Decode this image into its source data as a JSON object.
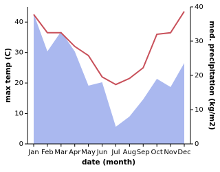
{
  "chart_data": {
    "type": "line",
    "categories": [
      "Jan",
      "Feb",
      "Mar",
      "Apr",
      "May",
      "Jun",
      "Jul",
      "Aug",
      "Sep",
      "Oct",
      "Nov",
      "Dec"
    ],
    "x_label": "date (month)",
    "y_label": "max temp (C)",
    "y2_label": "med. precipitation (kg/m2)",
    "series": [
      {
        "name": "med. precipitation",
        "type": "area",
        "axis": "y2",
        "color": "#aab8ef",
        "values": [
          38,
          27,
          32.8,
          27,
          17,
          18,
          5,
          8,
          13,
          19,
          16.6,
          23.6
        ]
      },
      {
        "name": "max temp",
        "type": "line",
        "color": "#c8505a",
        "values": [
          42.5,
          36.5,
          36.5,
          32,
          29,
          22,
          19.5,
          21.5,
          25,
          36,
          36.5,
          43.5
        ]
      }
    ],
    "ylim": [
      0,
      45
    ],
    "yticks": [
      0,
      10,
      20,
      30,
      40
    ],
    "y2lim": [
      0,
      40
    ],
    "y2ticks": [
      0,
      10,
      20,
      30,
      40
    ]
  }
}
